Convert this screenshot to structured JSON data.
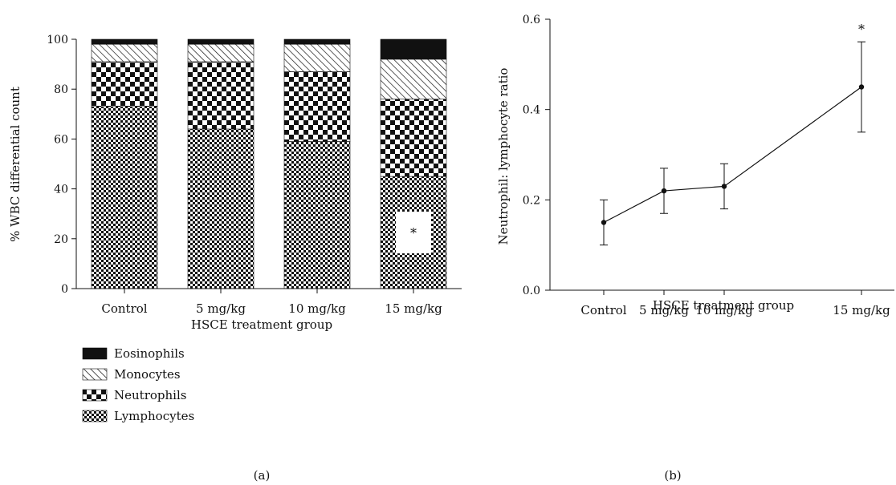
{
  "chart_data": [
    {
      "type": "bar",
      "stacked": true,
      "panel_label": "(a)",
      "title": "",
      "xlabel": "HSCE treatment group",
      "ylabel": "% WBC differential count",
      "categories": [
        "Control",
        "5 mg/kg",
        "10 mg/kg",
        "15 mg/kg"
      ],
      "ylim": [
        0,
        100
      ],
      "yticks": [
        0,
        20,
        40,
        60,
        80,
        100
      ],
      "series": [
        {
          "name": "Lymphocytes",
          "values": [
            73,
            64,
            59,
            45
          ]
        },
        {
          "name": "Neutrophils",
          "values": [
            18,
            27,
            28,
            31
          ]
        },
        {
          "name": "Monocytes",
          "values": [
            7,
            7,
            11,
            16
          ]
        },
        {
          "name": "Eosinophils",
          "values": [
            2,
            2,
            2,
            8
          ]
        }
      ],
      "legend_order": [
        "Eosinophils",
        "Monocytes",
        "Neutrophils",
        "Lymphocytes"
      ],
      "legend_position": "bottom-left",
      "annotations": [
        {
          "category": "15 mg/kg",
          "series": "Lymphocytes",
          "text": "*"
        }
      ]
    },
    {
      "type": "line",
      "panel_label": "(b)",
      "title": "",
      "xlabel": "HSCE treatment group",
      "ylabel": "Neutrophil: lymphocyte ratio",
      "categories": [
        "Control",
        "5 mg/kg",
        "10 mg/kg",
        "15 mg/kg"
      ],
      "ylim": [
        0,
        0.6
      ],
      "yticks": [
        "0.0",
        "0.2",
        "0.4",
        "0.6"
      ],
      "series": [
        {
          "values": [
            0.15,
            0.22,
            0.23,
            0.45
          ],
          "error": [
            0.05,
            0.05,
            0.05,
            0.1
          ]
        }
      ],
      "annotations": [
        {
          "category": "15 mg/kg",
          "text": "*"
        }
      ]
    }
  ],
  "colors": {
    "ink": "#111111",
    "background": "#ffffff"
  },
  "patterns": {
    "Eosinophils": "solid",
    "Monocytes": "diagonal-hatch",
    "Neutrophils": "large-checker",
    "Lymphocytes": "small-checker"
  }
}
